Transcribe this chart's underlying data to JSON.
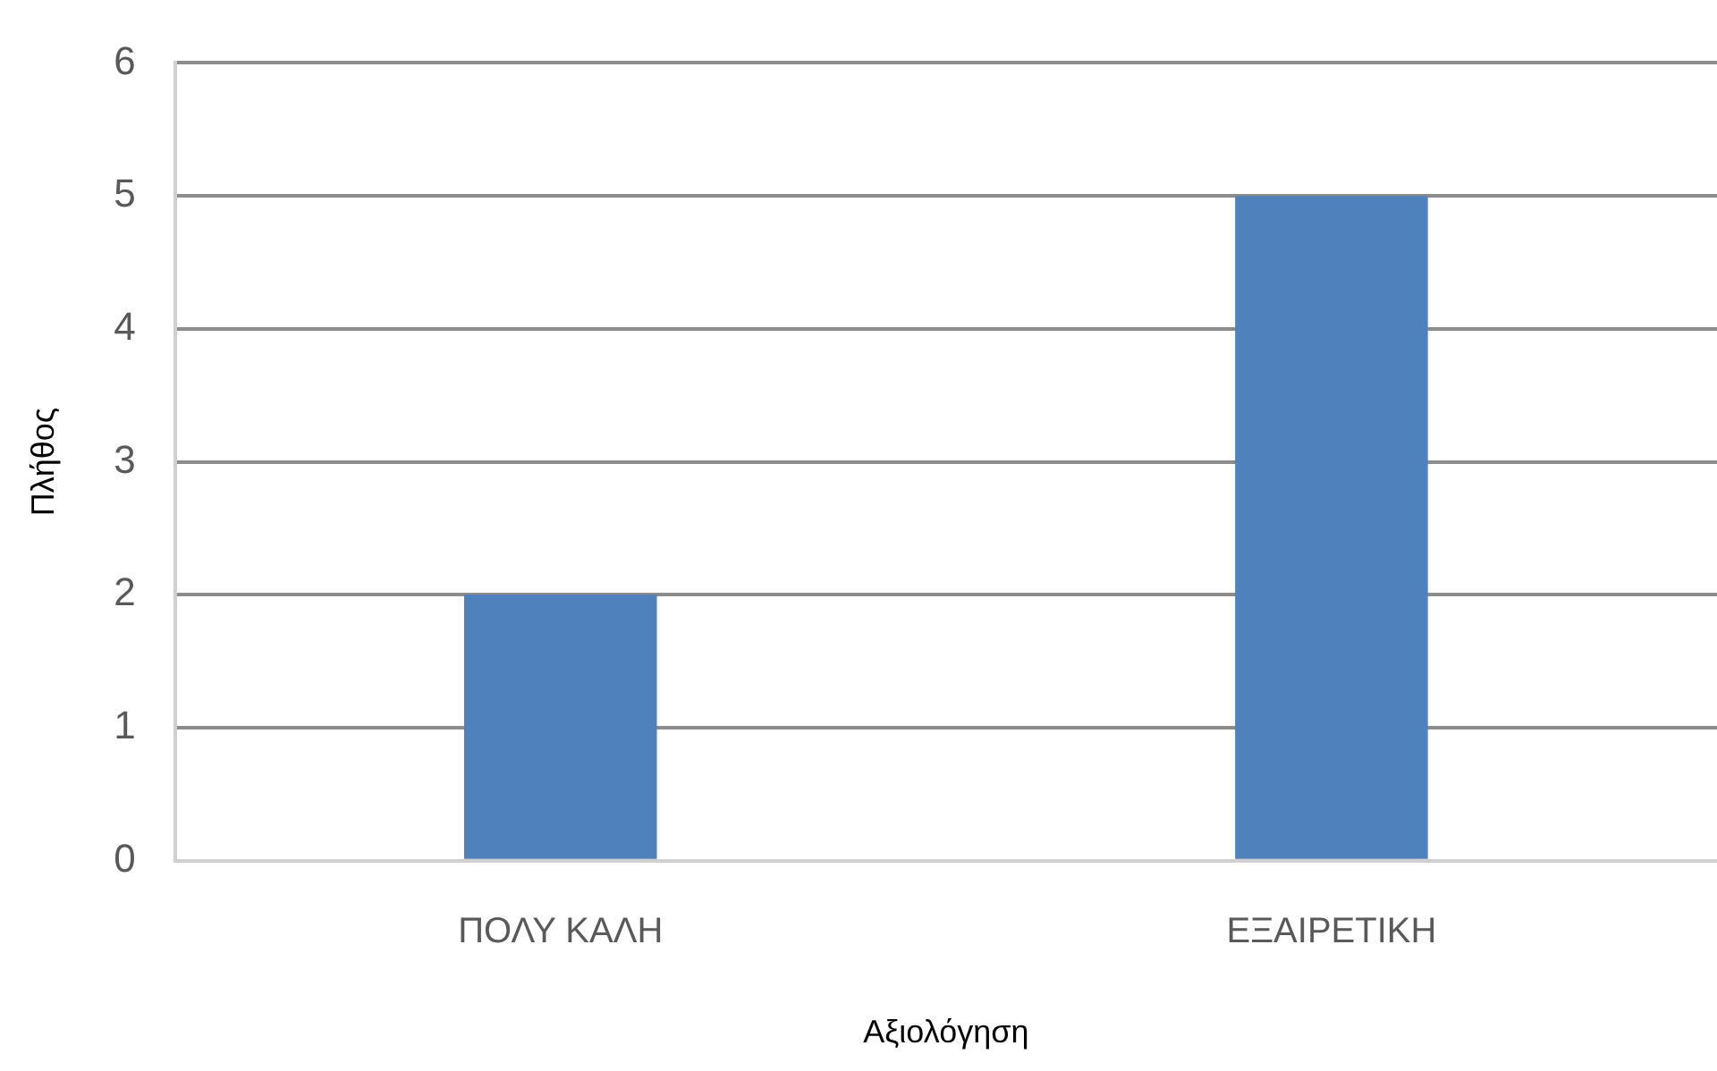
{
  "chart_data": {
    "type": "bar",
    "categories": [
      "ΠΟΛΥ ΚΑΛΗ",
      "ΕΞΑΙΡΕΤΙΚΗ"
    ],
    "values": [
      2,
      5
    ],
    "color": "#4f81bd",
    "xlabel": "Αξιολόγηση",
    "ylabel": "Πλήθος",
    "ylim": [
      0,
      6
    ],
    "yticks": [
      0,
      1,
      2,
      3,
      4,
      5,
      6
    ],
    "grid": "y",
    "legend": false
  }
}
